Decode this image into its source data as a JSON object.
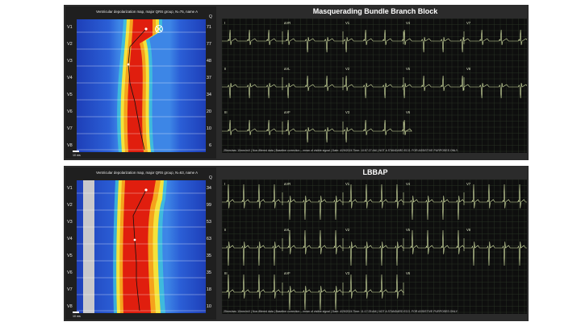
{
  "colors": {
    "panel_bg": "#2b2b2b",
    "ecg_bg": "#0e0e0e",
    "ecg_grid": "#2f3a2a",
    "ecg_trace": "#d8e6a8",
    "map_cold": "#1e3fb8",
    "map_hot": "#e01e0e",
    "marker": "#ffffff"
  },
  "panels": [
    {
      "id": "top",
      "ecg_title": "Masquerading Bundle Branch Block",
      "map_title": "Ventricular depolarization map, major QRS group, N=75, name A",
      "q_header": "Q",
      "leads": [
        "V1",
        "V2",
        "V3",
        "V4",
        "V5",
        "V6",
        "V7",
        "V8"
      ],
      "qrs_values": [
        "71",
        "77",
        "48",
        "37",
        "34",
        "20",
        "10",
        "6"
      ],
      "scale_label": "10 ms",
      "ecg_leads": [
        "I",
        "aVR",
        "V1",
        "V4",
        "V7",
        "II",
        "aVL",
        "V2",
        "V5",
        "V8",
        "III",
        "aVF",
        "V3",
        "V6"
      ],
      "footer": "25mm/sec 10mm/mV | Non-filtered data | Baseline correction – mean of visible signal | Date: 4/29/2024 Time: 10:57:27 AM | NOT A STANDARD ECG. FOR ASSISTIVE PURPOSES ONLY."
    },
    {
      "id": "bottom",
      "ecg_title": "LBBAP",
      "map_title": "Ventricular depolarization map, major QRS group, N=63, name A",
      "q_header": "Q",
      "leads": [
        "V1",
        "V2",
        "V3",
        "V4",
        "V5",
        "V6",
        "V7",
        "V8"
      ],
      "qrs_values": [
        "34",
        "99",
        "53",
        "63",
        "35",
        "35",
        "18",
        "10"
      ],
      "scale_label": "10 ms",
      "ecg_leads": [
        "I",
        "aVR",
        "V1",
        "V4",
        "V7",
        "II",
        "aVL",
        "V2",
        "V5",
        "V8",
        "III",
        "aVF",
        "V3",
        "V6"
      ],
      "footer": "25mm/sec 10mm/mV | Non-filtered data | Baseline correction – mean of visible signal | Date: 4/29/2024 Time: 11:17:25 AM | NOT A STANDARD ECG. FOR ASSISTIVE PURPOSES ONLY."
    }
  ]
}
